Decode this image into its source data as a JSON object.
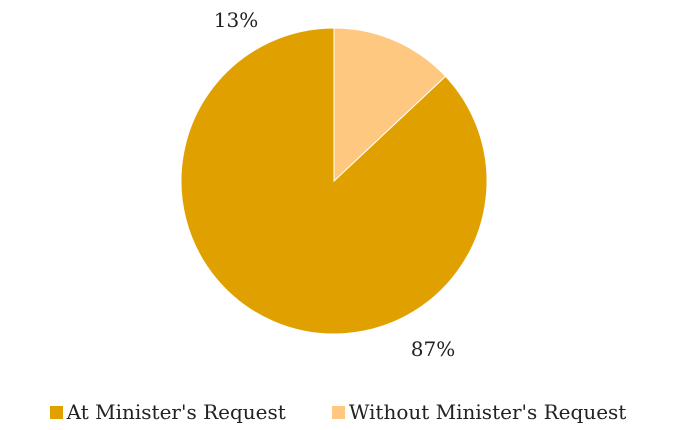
{
  "chart_data": {
    "type": "pie",
    "categories": [
      "At Minister's Request",
      "Without Minister's Request"
    ],
    "values": [
      87,
      13
    ],
    "data_labels": [
      "87%",
      "13%"
    ],
    "colors": [
      "#E0A100",
      "#FFC881"
    ],
    "legend_position": "bottom",
    "start_direction": "top",
    "order": "counterclockwise"
  }
}
